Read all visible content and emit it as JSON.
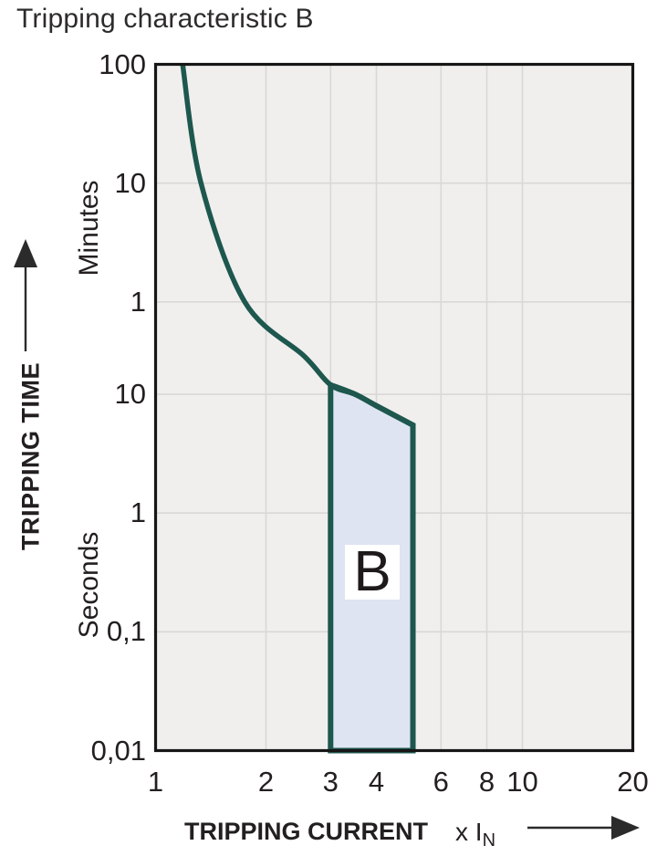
{
  "title": "Tripping characteristic B",
  "colors": {
    "curve": "#1d574e",
    "band_fill": "#dfe4f3",
    "plot_bg": "#f0efed",
    "grid": "#d9d8d6",
    "frame": "#161616",
    "text": "#231f20"
  },
  "y_axis": {
    "title": "TRIPPING TIME",
    "unit_top": "Minutes",
    "unit_bottom": "Seconds",
    "ticks": [
      {
        "label": "100",
        "seconds": 6000
      },
      {
        "label": "10",
        "seconds": 600
      },
      {
        "label": "1",
        "seconds": 60
      },
      {
        "label": "10",
        "seconds": 10
      },
      {
        "label": "1",
        "seconds": 1
      },
      {
        "label": "0,1",
        "seconds": 0.1
      },
      {
        "label": "0,01",
        "seconds": 0.01
      }
    ]
  },
  "x_axis": {
    "title": "TRIPPING CURRENT",
    "unit_prefix": "x I",
    "unit_sub": "N",
    "ticks": [
      {
        "label": "1",
        "value": 1
      },
      {
        "label": "2",
        "value": 2
      },
      {
        "label": "3",
        "value": 3
      },
      {
        "label": "4",
        "value": 4
      },
      {
        "label": "6",
        "value": 6
      },
      {
        "label": "8",
        "value": 8
      },
      {
        "label": "10",
        "value": 10
      },
      {
        "label": "20",
        "value": 20
      }
    ]
  },
  "chart_data": {
    "type": "line",
    "title": "Tripping characteristic B",
    "xlabel": "TRIPPING CURRENT x IN",
    "ylabel": "TRIPPING TIME",
    "x_scale": "log",
    "y_scale": "log",
    "xlim": [
      1,
      20
    ],
    "ylim_seconds": [
      0.01,
      6000
    ],
    "curve_points_multiple_vs_seconds": [
      [
        1.185,
        6000
      ],
      [
        1.33,
        600
      ],
      [
        1.75,
        60
      ],
      [
        2.54,
        21
      ],
      [
        3.0,
        12
      ],
      [
        3.5,
        10
      ],
      [
        4.0,
        8
      ],
      [
        5.03,
        5.5
      ],
      [
        5.03,
        0.01
      ]
    ],
    "band": {
      "label": "B",
      "x_range": [
        3,
        5
      ],
      "top_points_multiple_vs_seconds": [
        [
          3.0,
          12
        ],
        [
          3.5,
          10
        ],
        [
          4.0,
          8
        ],
        [
          5.03,
          5.5
        ]
      ],
      "bottom_seconds": 0.01
    }
  }
}
